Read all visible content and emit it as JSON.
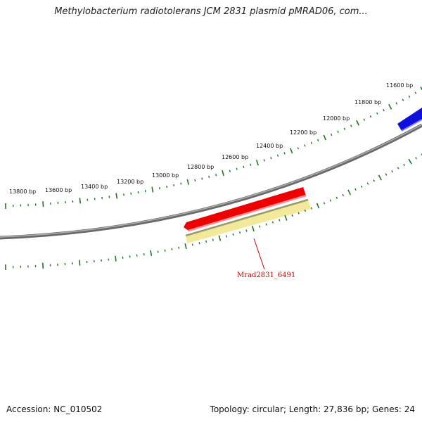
{
  "title": "Methylobacterium radiotolerans JCM 2831 plasmid pMRAD06, com...",
  "ruler": {
    "tick_labels": [
      "11600 bp",
      "11800 bp",
      "12000 bp",
      "12200 bp",
      "12400 bp",
      "12600 bp",
      "12800 bp",
      "13000 bp",
      "13200 bp",
      "13400 bp",
      "13600 bp",
      "13800 bp"
    ],
    "tick_color": "#1a7a1a"
  },
  "features": {
    "forward_gene": {
      "color": "#ee0000",
      "highlight": "#ff9090"
    },
    "reverse_gene": {
      "color": "#1010dd",
      "highlight": "#8080ff"
    },
    "cds": {
      "color": "#f3e99a",
      "edge": "#9a9a6a"
    },
    "gene_label": "Mrad2831_6491"
  },
  "backbone_color": "#808080",
  "footer": {
    "accession": "Accession: NC_010502",
    "summary": "Topology: circular; Length: 27,836 bp; Genes: 24"
  }
}
